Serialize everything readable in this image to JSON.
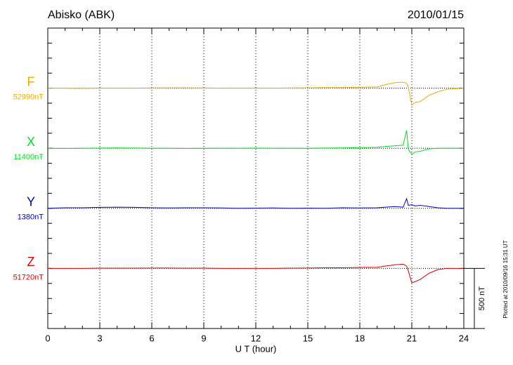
{
  "chart_data": {
    "type": "line",
    "title": "Abisko (ABK)",
    "date": "2010/01/15",
    "xlabel": "U T (hour)",
    "footnote": "Plotted at 2010/09/16 15:31 UT",
    "xlim": [
      0,
      24
    ],
    "xticks": [
      0,
      3,
      6,
      9,
      12,
      15,
      18,
      21,
      24
    ],
    "xminorticks": [
      0,
      1,
      2,
      3,
      4,
      5,
      6,
      7,
      8,
      9,
      10,
      11,
      12,
      13,
      14,
      15,
      16,
      17,
      18,
      19,
      20,
      21,
      22,
      23,
      24
    ],
    "ylim": [
      0,
      2500
    ],
    "yticks": [
      0,
      125,
      250,
      375,
      500,
      625,
      750,
      875,
      1000,
      1125,
      1250,
      1375,
      1500,
      1625,
      1750,
      1875,
      2000,
      2125,
      2250,
      2375,
      2500
    ],
    "grid": true,
    "scale_bar": {
      "value": 500,
      "label": "500 nT"
    },
    "x": [
      0,
      1,
      2,
      3,
      4,
      5,
      6,
      7,
      8,
      9,
      10,
      11,
      12,
      13,
      14,
      15,
      16,
      17,
      18,
      19,
      19.5,
      20,
      20.5,
      20.7,
      20.8,
      21,
      21.2,
      21.5,
      22,
      22.5,
      23,
      24
    ],
    "series": [
      {
        "name": "F",
        "color": "#f0a800",
        "baseline": {
          "value": 52990,
          "label": "52990nT"
        },
        "values": [
          52990,
          52990,
          52988,
          52990,
          52990,
          52990,
          52992,
          52993,
          52993,
          52992,
          52990,
          52990,
          52990,
          52990,
          52992,
          52993,
          52995,
          52995,
          52998,
          53000,
          53020,
          53035,
          53040,
          53030,
          53000,
          52850,
          52870,
          52880,
          52930,
          52960,
          52980,
          52990
        ]
      },
      {
        "name": "X",
        "color": "#00dd20",
        "baseline": {
          "value": 11400,
          "label": "11400nT"
        },
        "values": [
          11400,
          11398,
          11400,
          11402,
          11403,
          11402,
          11400,
          11400,
          11398,
          11400,
          11400,
          11400,
          11402,
          11400,
          11400,
          11400,
          11402,
          11403,
          11405,
          11408,
          11415,
          11420,
          11425,
          11550,
          11390,
          11350,
          11370,
          11375,
          11395,
          11400,
          11400,
          11400
        ]
      },
      {
        "name": "Y",
        "color": "#0000cc",
        "baseline": {
          "value": 1380,
          "label": "1380nT"
        },
        "values": [
          1380,
          1385,
          1385,
          1388,
          1390,
          1388,
          1385,
          1383,
          1385,
          1385,
          1383,
          1380,
          1382,
          1383,
          1380,
          1382,
          1380,
          1385,
          1383,
          1385,
          1390,
          1395,
          1390,
          1460,
          1405,
          1410,
          1400,
          1405,
          1395,
          1385,
          1380,
          1380
        ]
      },
      {
        "name": "Z",
        "color": "#dd0000",
        "baseline": {
          "value": 51720,
          "label": "51720nT"
        },
        "values": [
          51720,
          51720,
          51720,
          51722,
          51722,
          51722,
          51723,
          51723,
          51722,
          51722,
          51720,
          51720,
          51720,
          51720,
          51722,
          51723,
          51725,
          51725,
          51728,
          51730,
          51740,
          51750,
          51755,
          51740,
          51700,
          51600,
          51610,
          51630,
          51680,
          51710,
          51720,
          51720
        ]
      }
    ]
  }
}
